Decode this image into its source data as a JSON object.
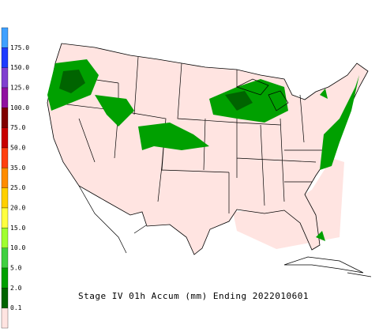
{
  "legend": {
    "colors": [
      "#3fa0ff",
      "#1e3cff",
      "#8040d0",
      "#9010a0",
      "#800000",
      "#c80000",
      "#ff4010",
      "#ff8c00",
      "#ffd000",
      "#ffff40",
      "#a0ff30",
      "#40d040",
      "#00a000",
      "#006400",
      "#ffe4e1"
    ],
    "labels": [
      "175.0",
      "150.0",
      "125.0",
      "100.0",
      "75.0",
      "50.0",
      "35.0",
      "25.0",
      "20.0",
      "15.0",
      "10.0",
      "5.0",
      "2.0",
      "0.1"
    ]
  },
  "caption": "Stage IV 01h Accum (mm) Ending 2022010601"
}
